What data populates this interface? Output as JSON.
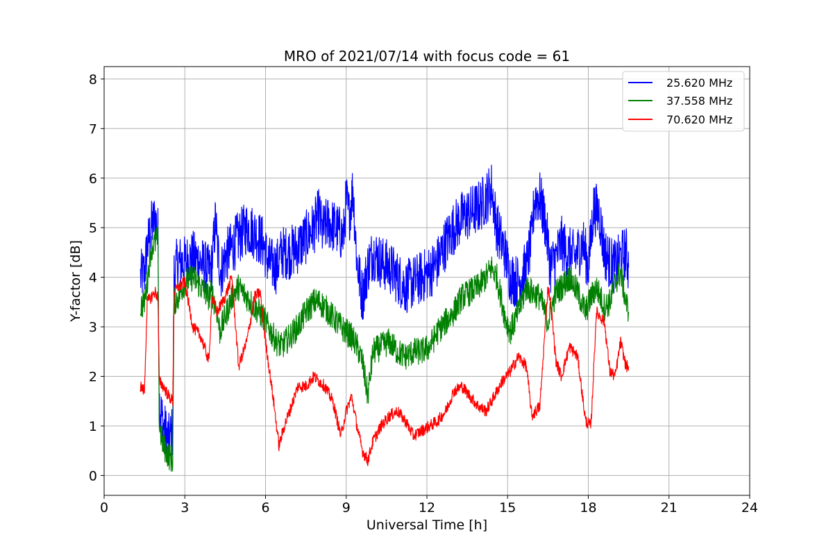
{
  "chart_data": {
    "type": "line",
    "title": "MRO of 2021/07/14 with focus code = 61",
    "xlabel": "Universal Time [h]",
    "ylabel": "Y-factor [dB]",
    "xlim": [
      0,
      24
    ],
    "ylim": [
      -0.4,
      8.25
    ],
    "xticks": [
      0,
      3,
      6,
      9,
      12,
      15,
      18,
      21,
      24
    ],
    "yticks": [
      0,
      1,
      2,
      3,
      4,
      5,
      6,
      7,
      8
    ],
    "grid": true,
    "legend_position": "top-right",
    "series": [
      {
        "name": "25.620 MHz",
        "color": "#0000ff",
        "x": [
          1.35,
          1.5,
          1.6,
          1.75,
          1.9,
          2.0,
          2.05,
          2.2,
          2.4,
          2.55,
          2.6,
          2.75,
          3.0,
          3.3,
          3.6,
          3.9,
          4.0,
          4.15,
          4.2,
          4.35,
          4.5,
          4.75,
          5.0,
          5.3,
          5.6,
          5.9,
          6.1,
          6.4,
          6.6,
          6.9,
          7.2,
          7.5,
          7.8,
          8.0,
          8.1,
          8.3,
          8.6,
          8.9,
          9.0,
          9.1,
          9.25,
          9.4,
          9.6,
          9.8,
          10.0,
          10.3,
          10.6,
          10.9,
          11.2,
          11.5,
          11.8,
          12.1,
          12.4,
          12.7,
          13.0,
          13.3,
          13.6,
          13.9,
          14.2,
          14.4,
          14.6,
          14.9,
          15.1,
          15.4,
          15.7,
          15.9,
          16.0,
          16.2,
          16.4,
          16.6,
          16.8,
          17.0,
          17.2,
          17.5,
          17.8,
          18.0,
          18.2,
          18.4,
          18.6,
          18.8,
          19.0,
          19.2,
          19.4,
          19.5
        ],
        "y": [
          4.0,
          4.1,
          4.6,
          5.0,
          5.2,
          4.9,
          1.5,
          1.0,
          0.7,
          0.9,
          4.1,
          4.3,
          4.3,
          4.4,
          4.3,
          4.1,
          4.2,
          5.2,
          4.6,
          4.1,
          4.4,
          4.6,
          4.8,
          5.0,
          4.9,
          4.7,
          4.3,
          4.2,
          4.5,
          4.5,
          4.6,
          4.8,
          5.0,
          5.3,
          4.9,
          5.1,
          5.0,
          4.8,
          5.6,
          5.2,
          5.8,
          4.3,
          3.6,
          4.2,
          4.5,
          4.3,
          4.2,
          4.0,
          3.8,
          3.9,
          4.0,
          4.1,
          4.3,
          4.7,
          5.0,
          5.2,
          5.3,
          5.4,
          5.6,
          5.8,
          5.0,
          4.5,
          4.0,
          3.9,
          4.2,
          4.8,
          5.6,
          5.6,
          5.1,
          4.2,
          4.4,
          4.7,
          4.5,
          4.4,
          4.7,
          4.2,
          5.4,
          5.3,
          4.5,
          4.3,
          4.2,
          4.4,
          4.5,
          4.2
        ]
      },
      {
        "name": "37.558 MHz",
        "color": "#008000",
        "x": [
          1.35,
          1.5,
          1.6,
          1.75,
          1.9,
          2.0,
          2.05,
          2.2,
          2.4,
          2.55,
          2.6,
          2.75,
          3.0,
          3.3,
          3.6,
          3.9,
          4.0,
          4.2,
          4.3,
          4.5,
          4.75,
          5.0,
          5.3,
          5.6,
          5.9,
          6.1,
          6.4,
          6.6,
          6.9,
          7.2,
          7.5,
          7.8,
          8.0,
          8.2,
          8.5,
          8.8,
          9.0,
          9.2,
          9.4,
          9.6,
          9.8,
          10.0,
          10.3,
          10.6,
          10.9,
          11.2,
          11.5,
          11.8,
          12.1,
          12.4,
          12.7,
          13.0,
          13.3,
          13.6,
          13.9,
          14.2,
          14.4,
          14.6,
          14.9,
          15.1,
          15.4,
          15.7,
          15.9,
          16.2,
          16.5,
          16.8,
          17.0,
          17.3,
          17.6,
          17.9,
          18.1,
          18.3,
          18.6,
          18.8,
          19.0,
          19.2,
          19.4,
          19.5
        ],
        "y": [
          3.4,
          3.5,
          3.9,
          4.6,
          4.7,
          4.8,
          1.0,
          0.6,
          0.4,
          0.3,
          3.5,
          3.6,
          3.9,
          4.0,
          3.8,
          3.6,
          3.7,
          3.3,
          2.9,
          3.2,
          3.6,
          3.8,
          3.6,
          3.4,
          3.2,
          3.0,
          2.7,
          2.6,
          2.8,
          3.0,
          3.3,
          3.5,
          3.5,
          3.4,
          3.2,
          3.0,
          2.9,
          2.8,
          2.6,
          2.3,
          1.6,
          2.5,
          2.6,
          2.7,
          2.5,
          2.4,
          2.5,
          2.5,
          2.6,
          2.9,
          3.1,
          3.3,
          3.6,
          3.7,
          3.8,
          4.0,
          4.2,
          4.0,
          3.2,
          2.9,
          3.3,
          3.8,
          3.7,
          3.6,
          3.1,
          3.7,
          3.8,
          4.0,
          3.7,
          3.3,
          3.6,
          3.8,
          3.4,
          3.5,
          3.9,
          4.1,
          3.5,
          3.3
        ]
      },
      {
        "name": "70.620 MHz",
        "color": "#ff0000",
        "x": [
          1.35,
          1.5,
          1.6,
          1.75,
          1.9,
          2.0,
          2.05,
          2.2,
          2.4,
          2.55,
          2.6,
          2.75,
          3.0,
          3.3,
          3.6,
          3.9,
          4.0,
          4.2,
          4.3,
          4.5,
          4.75,
          5.0,
          5.3,
          5.6,
          5.8,
          6.0,
          6.3,
          6.5,
          6.7,
          6.9,
          7.2,
          7.5,
          7.8,
          8.0,
          8.2,
          8.5,
          8.8,
          9.0,
          9.2,
          9.4,
          9.6,
          9.8,
          10.0,
          10.3,
          10.6,
          10.9,
          11.2,
          11.5,
          11.8,
          12.1,
          12.4,
          12.7,
          13.0,
          13.3,
          13.6,
          13.9,
          14.2,
          14.5,
          14.8,
          15.1,
          15.4,
          15.7,
          15.9,
          16.2,
          16.5,
          16.6,
          16.8,
          17.0,
          17.3,
          17.6,
          17.9,
          18.1,
          18.3,
          18.6,
          18.8,
          19.0,
          19.2,
          19.4,
          19.5
        ],
        "y": [
          1.8,
          1.7,
          3.5,
          3.6,
          3.7,
          3.6,
          1.9,
          1.8,
          1.6,
          1.5,
          3.7,
          3.8,
          3.9,
          3.0,
          2.8,
          2.3,
          3.6,
          3.3,
          3.4,
          3.6,
          4.0,
          2.2,
          2.7,
          3.6,
          3.7,
          2.7,
          1.5,
          0.6,
          1.0,
          1.3,
          1.8,
          1.8,
          2.0,
          1.9,
          1.8,
          1.5,
          0.8,
          1.3,
          1.6,
          1.0,
          0.5,
          0.3,
          0.7,
          1.0,
          1.2,
          1.3,
          1.1,
          0.8,
          0.9,
          1.0,
          1.1,
          1.3,
          1.7,
          1.8,
          1.6,
          1.4,
          1.3,
          1.6,
          1.9,
          2.1,
          2.4,
          2.2,
          1.2,
          1.4,
          3.8,
          3.5,
          2.3,
          2.0,
          2.6,
          2.4,
          1.1,
          1.0,
          3.3,
          3.1,
          2.1,
          2.0,
          2.7,
          2.2,
          2.2
        ]
      }
    ]
  }
}
